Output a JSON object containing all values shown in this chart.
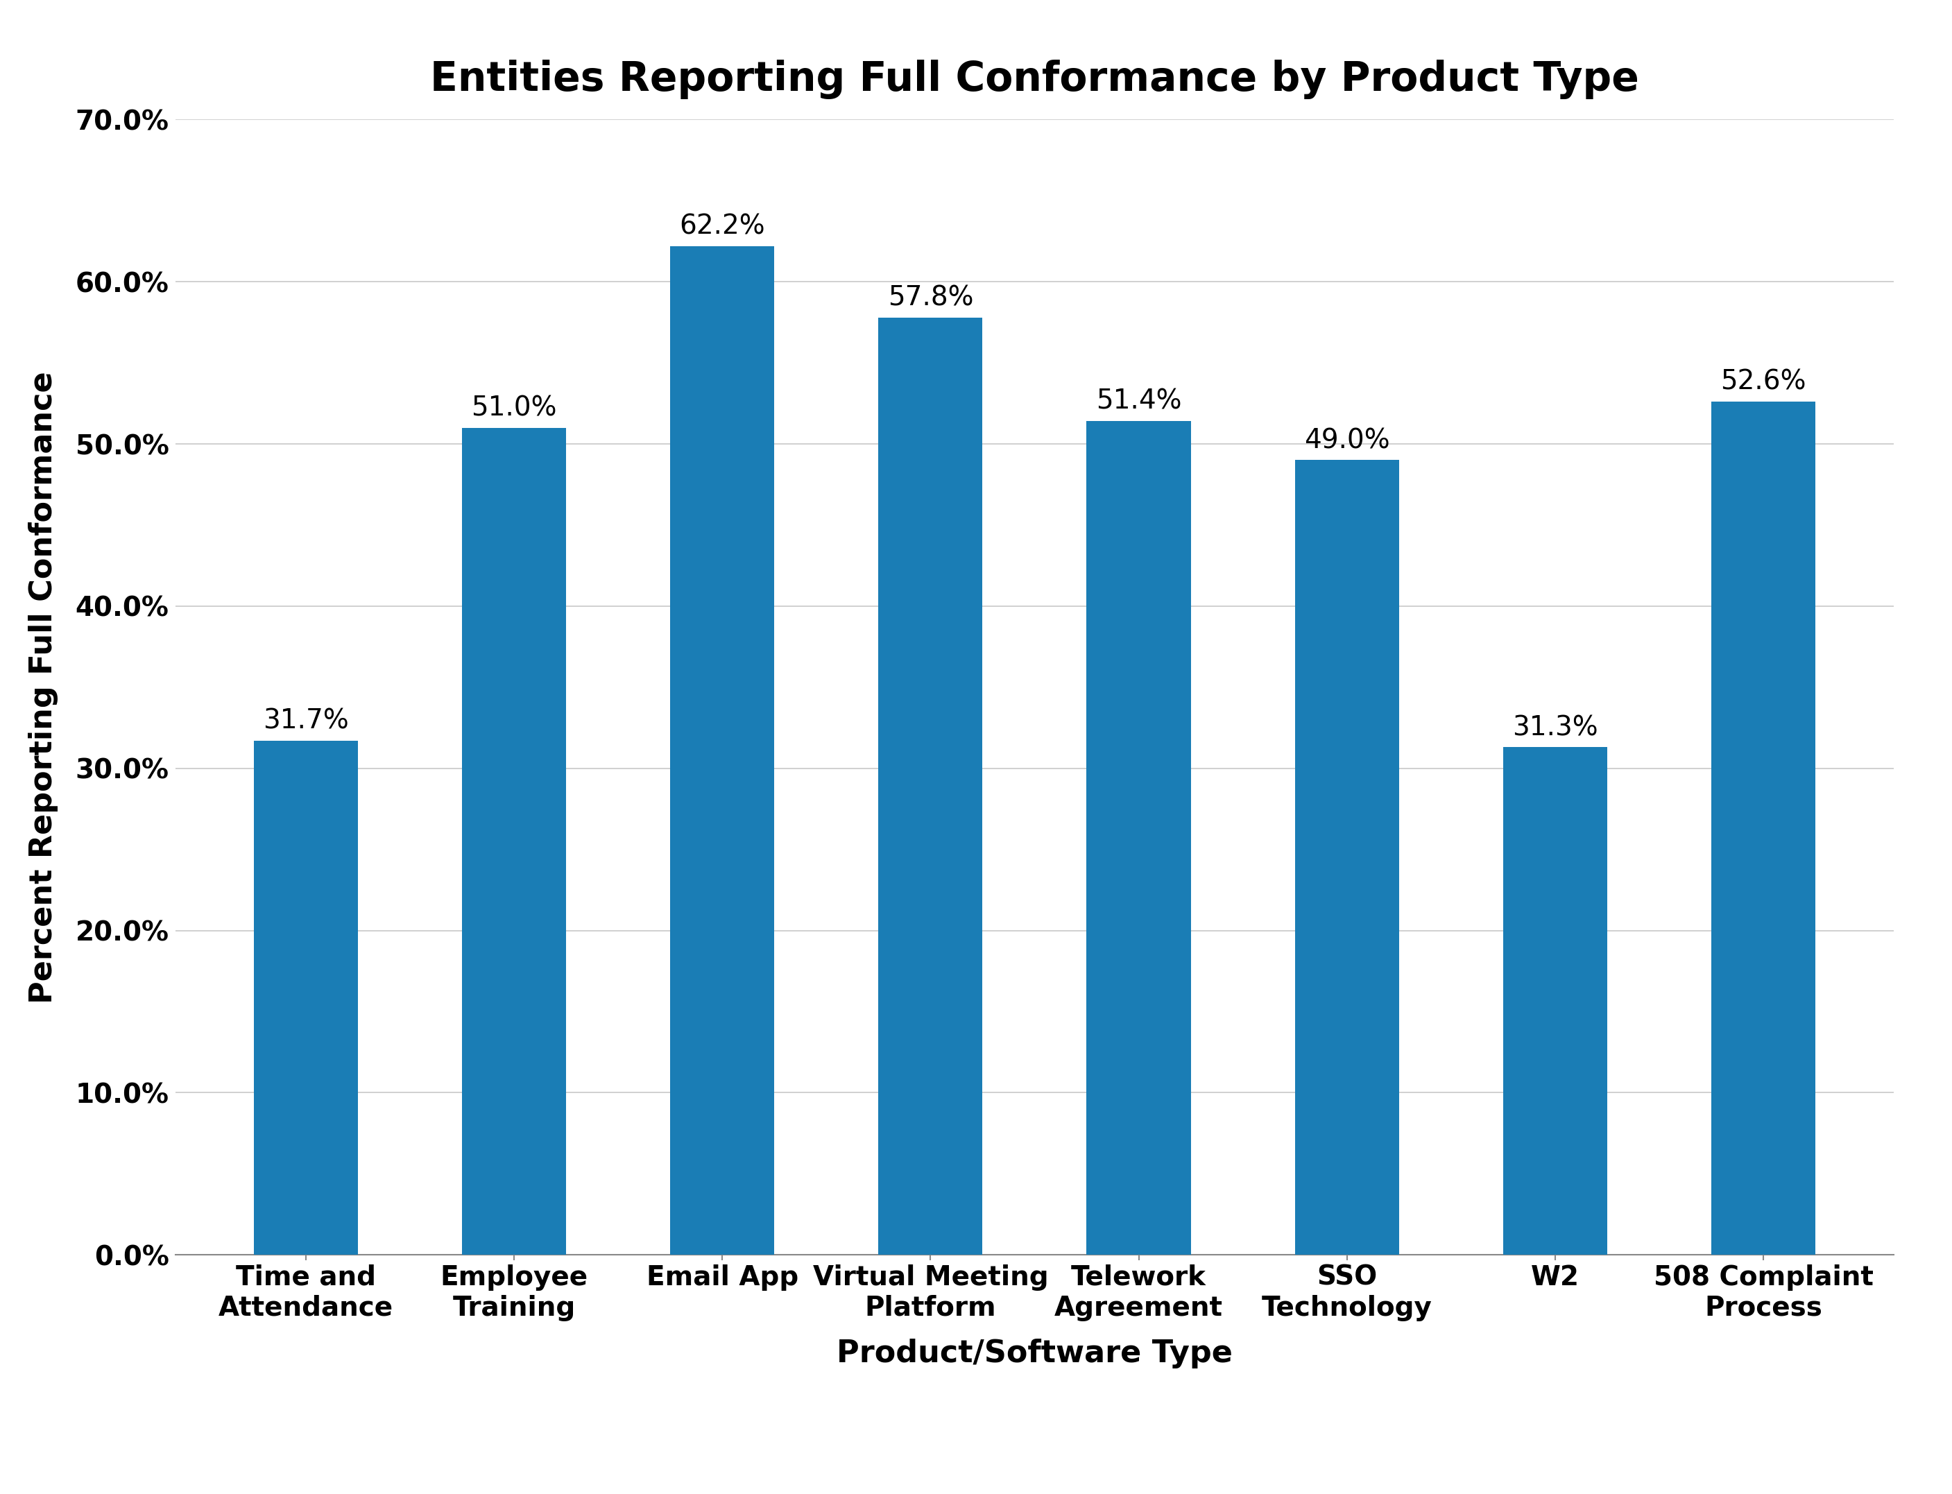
{
  "title": "Entities Reporting Full Conformance by Product Type",
  "xlabel": "Product/Software Type",
  "ylabel": "Percent Reporting Full Conformance",
  "categories": [
    "Time and\nAttendance",
    "Employee\nTraining",
    "Email App",
    "Virtual Meeting\nPlatform",
    "Telework\nAgreement",
    "SSO\nTechnology",
    "W2",
    "508 Complaint\nProcess"
  ],
  "values": [
    31.7,
    51.0,
    62.2,
    57.8,
    51.4,
    49.0,
    31.3,
    52.6
  ],
  "labels": [
    "31.7%",
    "51.0%",
    "62.2%",
    "57.8%",
    "51.4%",
    "49.0%",
    "31.3%",
    "52.6%"
  ],
  "bar_color": "#1a7db5",
  "ylim": [
    0,
    70
  ],
  "yticks": [
    0,
    10,
    20,
    30,
    40,
    50,
    60,
    70
  ],
  "ytick_labels": [
    "0.0%",
    "10.0%",
    "20.0%",
    "30.0%",
    "40.0%",
    "50.0%",
    "60.0%",
    "70.0%"
  ],
  "background_color": "#ffffff",
  "grid_color": "#c8c8c8",
  "title_fontsize": 42,
  "label_fontsize": 32,
  "tick_fontsize": 28,
  "bar_label_fontsize": 28,
  "title_fontweight": "bold",
  "xlabel_fontweight": "bold",
  "ylabel_fontweight": "bold",
  "bar_width": 0.5
}
